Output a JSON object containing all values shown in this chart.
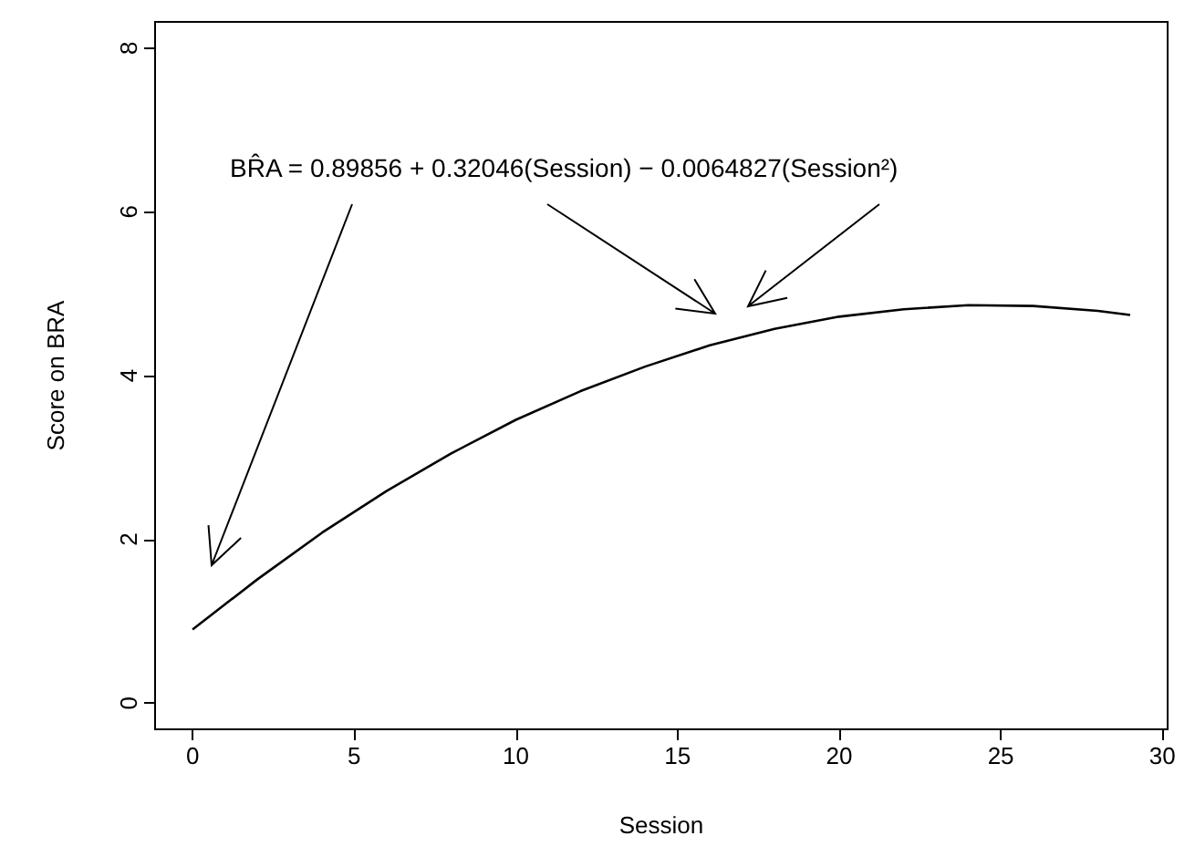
{
  "chart_data": {
    "type": "line",
    "xlabel": "Session",
    "ylabel": "Score on BRA",
    "x": [
      0,
      2,
      4,
      6,
      8,
      10,
      12,
      14,
      16,
      18,
      20,
      22,
      24,
      26,
      28,
      29
    ],
    "series": [
      {
        "color": "#000000",
        "values": [
          0.9,
          1.51,
          2.08,
          2.59,
          3.05,
          3.46,
          3.81,
          4.11,
          4.37,
          4.57,
          4.72,
          4.81,
          4.86,
          4.85,
          4.79,
          4.74
        ]
      }
    ],
    "xlim": [
      -1.16,
      30.16
    ],
    "xticks": [
      0,
      5,
      10,
      15,
      20,
      25,
      30
    ],
    "ylim": [
      -0.32,
      8.32
    ],
    "yticks": [
      0,
      2,
      4,
      6,
      8
    ],
    "grid": false,
    "marker": "none",
    "line_style": "solid",
    "annotations": [
      "BR̂A = 0.89856 + 0.32046(Session) − 0.0064827(Session²)"
    ]
  }
}
